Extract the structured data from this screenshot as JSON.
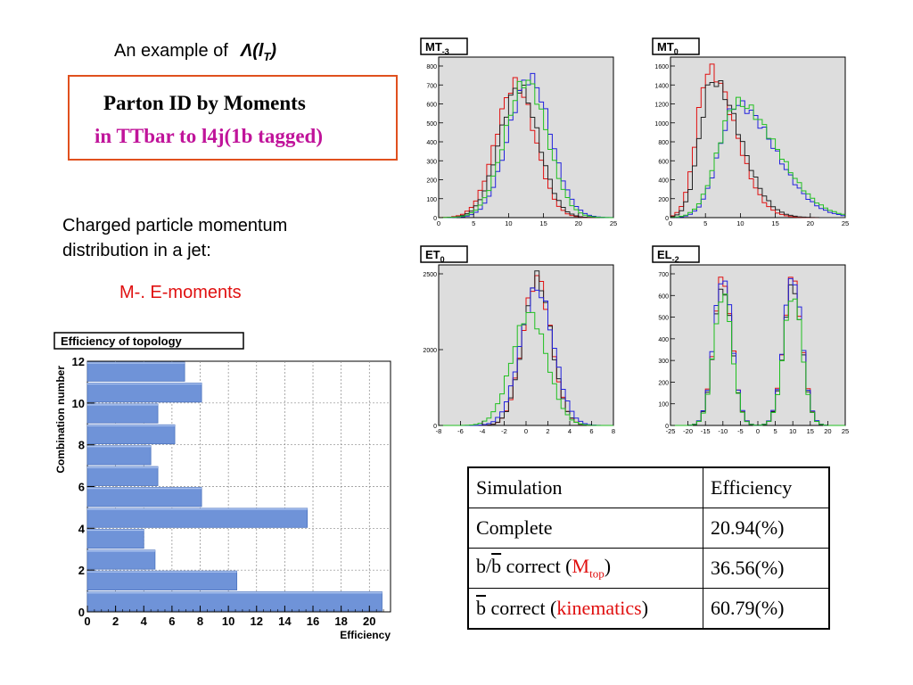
{
  "intro": {
    "text": "An example of",
    "symbol": "Λ(l",
    "subscript": "T",
    "close": ")"
  },
  "title_box": {
    "line1": "Parton ID by Moments",
    "line2": "in TTbar to l4j(1b tagged)"
  },
  "description": {
    "line1": "Charged particle momentum",
    "line2": "distribution in a jet:",
    "moments": "M-. E-moments"
  },
  "colors": {
    "accent_border": "#e0501e",
    "magenta": "#c0149a",
    "red": "#e01010",
    "bar": "#6f93d8",
    "panel": "#dddddd"
  },
  "histograms": [
    {
      "label": "MT",
      "sub": "-3",
      "xticks": [
        "0",
        "5",
        "10",
        "15",
        "20",
        "25"
      ],
      "yticks": [
        "0",
        "100",
        "200",
        "300",
        "400",
        "500",
        "600",
        "700",
        "800"
      ]
    },
    {
      "label": "MT",
      "sub": "0",
      "xticks": [
        "0",
        "5",
        "10",
        "15",
        "20",
        "25"
      ],
      "yticks": [
        "0",
        "200",
        "400",
        "600",
        "800",
        "1000",
        "1200",
        "1400",
        "1600"
      ]
    },
    {
      "label": "ET",
      "sub": "0",
      "xticks": [
        "-8",
        "-6",
        "-4",
        "-2",
        "0",
        "2",
        "4",
        "6",
        "8"
      ],
      "yticks": [
        "0",
        "2000",
        "2500"
      ]
    },
    {
      "label": "EL",
      "sub": "-2",
      "xticks": [
        "-25",
        "-20",
        "-15",
        "-10",
        "-5",
        "0",
        "5",
        "10",
        "15",
        "20",
        "25"
      ],
      "yticks": [
        "0",
        "100",
        "200",
        "300",
        "400",
        "500",
        "600",
        "700"
      ]
    }
  ],
  "chart_data": [
    {
      "type": "bar",
      "orientation": "horizontal",
      "title": "Efficiency of topology",
      "xlabel": "Efficiency",
      "ylabel": "Combination number",
      "xlim": [
        0,
        21.5
      ],
      "ylim": [
        0,
        12
      ],
      "xticks": [
        "0",
        "2",
        "4",
        "6",
        "8",
        "10",
        "12",
        "14",
        "16",
        "18",
        "20"
      ],
      "yticks": [
        "0",
        "2",
        "4",
        "6",
        "8",
        "10",
        "12"
      ],
      "grid": true,
      "categories": [
        1,
        2,
        3,
        4,
        5,
        6,
        7,
        8,
        9,
        10,
        11,
        12
      ],
      "values": [
        20.9,
        10.6,
        4.8,
        4.0,
        15.6,
        8.1,
        5.0,
        4.5,
        6.2,
        5.0,
        8.1,
        6.9
      ]
    },
    {
      "type": "table",
      "columns": [
        "Simulation",
        "Efficiency"
      ],
      "rows": [
        [
          "Complete",
          "20.94(%)"
        ],
        [
          "b/b correct (Mtop)",
          "36.56(%)"
        ],
        [
          "b correct (kinematics)",
          "60.79(%)"
        ]
      ]
    }
  ],
  "table": {
    "header": [
      "Simulation",
      "Efficiency"
    ],
    "r1": {
      "label": "Complete",
      "value": "20.94(%)"
    },
    "r2": {
      "b1": "b/",
      "b2": "b",
      "mid": " correct (",
      "m": "M",
      "msub": "top",
      "end": ")",
      "value": "36.56(%)"
    },
    "r3": {
      "b": "b",
      "mid": " correct (",
      "kin": "kinematics",
      "end": ")",
      "value": "60.79(%)"
    }
  }
}
